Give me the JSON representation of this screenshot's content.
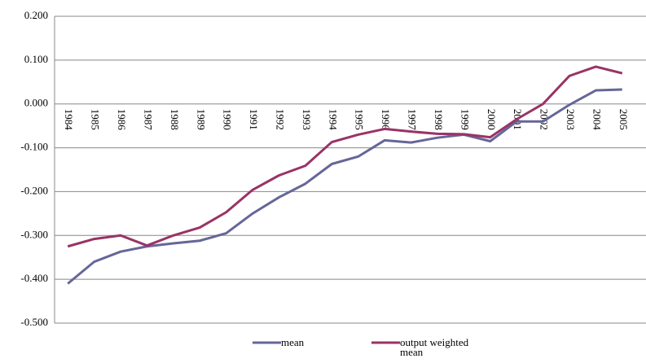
{
  "chart_data": {
    "type": "line",
    "categories": [
      "1984",
      "1985",
      "1986",
      "1987",
      "1988",
      "1989",
      "1990",
      "1991",
      "1992",
      "1993",
      "1994",
      "1995",
      "1996",
      "1997",
      "1998",
      "1999",
      "2000",
      "2001",
      "2002",
      "2003",
      "2004",
      "2005"
    ],
    "series": [
      {
        "name": "mean",
        "color": "#666699",
        "values": [
          -0.41,
          -0.36,
          -0.337,
          -0.325,
          -0.318,
          -0.312,
          -0.295,
          -0.25,
          -0.213,
          -0.182,
          -0.137,
          -0.12,
          -0.083,
          -0.088,
          -0.077,
          -0.07,
          -0.085,
          -0.04,
          -0.04,
          -0.002,
          0.031,
          0.033
        ]
      },
      {
        "name": "output weighted mean",
        "color": "#993366",
        "values": [
          -0.325,
          -0.308,
          -0.3,
          -0.323,
          -0.3,
          -0.282,
          -0.247,
          -0.196,
          -0.163,
          -0.141,
          -0.087,
          -0.07,
          -0.057,
          -0.063,
          -0.068,
          -0.069,
          -0.076,
          -0.035,
          0.0,
          0.064,
          0.085,
          0.07
        ]
      }
    ],
    "ylim": [
      -0.5,
      0.2
    ],
    "yticks": [
      {
        "value": -0.5,
        "label": "-0.500"
      },
      {
        "value": -0.4,
        "label": "-0.400"
      },
      {
        "value": -0.3,
        "label": "-0.300"
      },
      {
        "value": -0.2,
        "label": "-0.200"
      },
      {
        "value": -0.1,
        "label": "-0.100"
      },
      {
        "value": 0,
        "label": "0.000"
      },
      {
        "value": 0.1,
        "label": "0.100"
      },
      {
        "value": 0.2,
        "label": "0.200"
      }
    ],
    "grid": true,
    "legend": "bottom"
  }
}
